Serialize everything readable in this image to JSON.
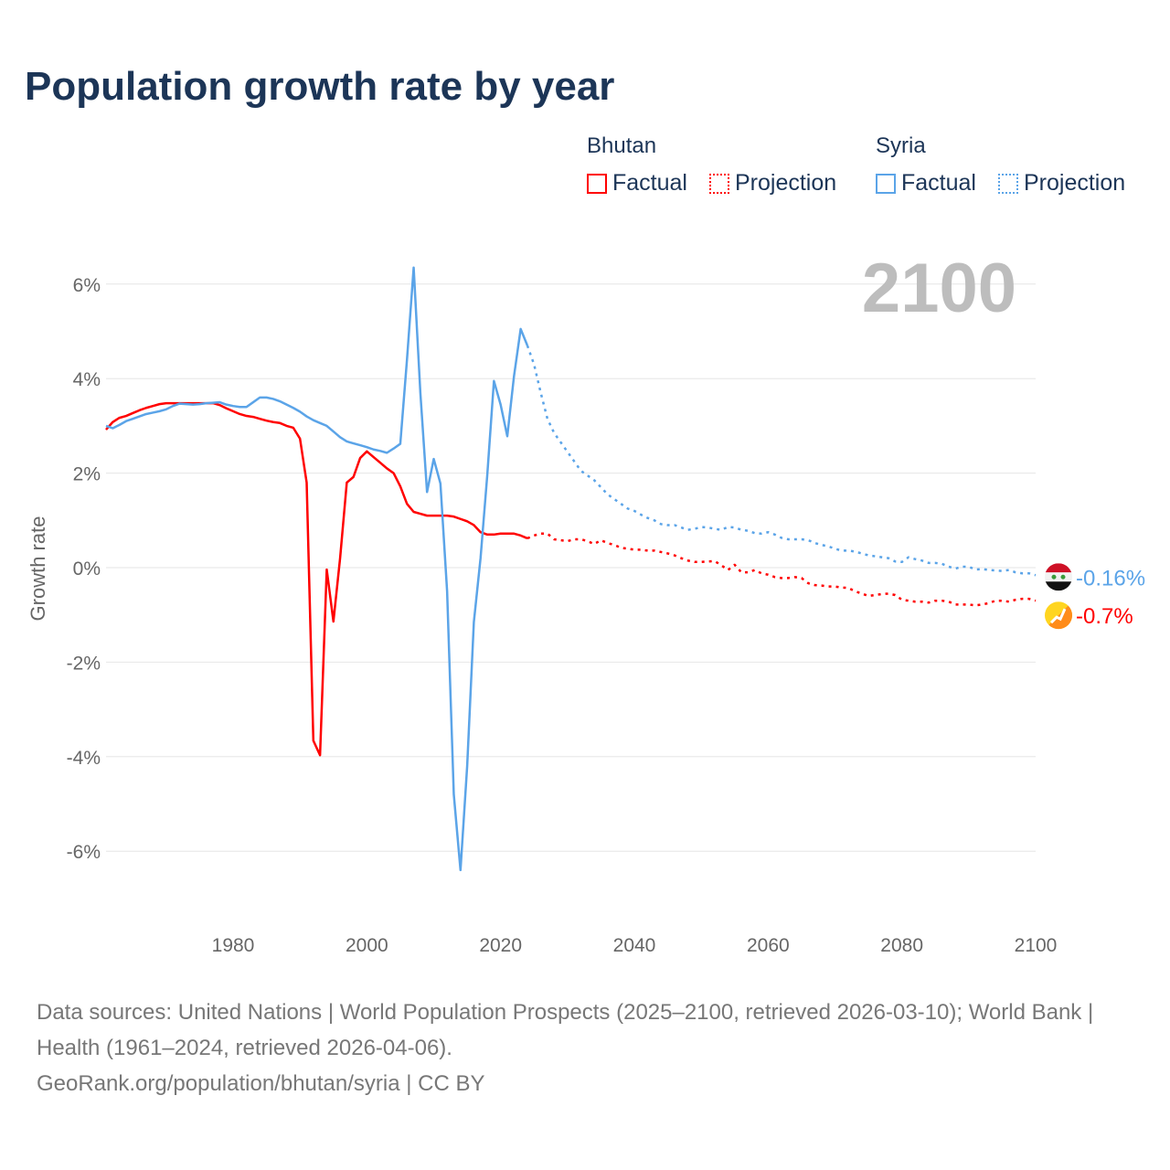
{
  "title": "Population growth rate by year",
  "current_year_label": "2100",
  "legend": {
    "groups": [
      {
        "country": "Bhutan",
        "factual": "Factual",
        "projection": "Projection",
        "color": "#ff0000"
      },
      {
        "country": "Syria",
        "factual": "Factual",
        "projection": "Projection",
        "color": "#5ba4e8"
      }
    ]
  },
  "footer": {
    "sources": "Data sources: United Nations | World Population Prospects (2025–2100, retrieved 2026-03-10); World Bank | Health (1961–2024, retrieved 2026-04-06).",
    "credit": "GeoRank.org/population/bhutan/syria | CC BY"
  },
  "chart_data": {
    "type": "line",
    "title": "Population growth rate by year",
    "xlabel": "",
    "ylabel": "Growth rate",
    "xlim": [
      1961,
      2100
    ],
    "ylim": [
      -7,
      6.9
    ],
    "xticks": [
      1980,
      2000,
      2020,
      2040,
      2060,
      2080,
      2100
    ],
    "yticks": [
      6,
      4,
      2,
      0,
      -2,
      -4,
      -6
    ],
    "ytick_labels": [
      "6%",
      "4%",
      "2%",
      "0%",
      "-2%",
      "-4%",
      "-6%"
    ],
    "grid": true,
    "series": [
      {
        "name": "Bhutan Factual",
        "country": "Bhutan",
        "kind": "factual",
        "color": "#ff0000",
        "start": 1961,
        "values": [
          2.92,
          3.08,
          3.17,
          3.21,
          3.27,
          3.33,
          3.38,
          3.42,
          3.46,
          3.48,
          3.48,
          3.48,
          3.48,
          3.48,
          3.48,
          3.48,
          3.48,
          3.44,
          3.37,
          3.31,
          3.25,
          3.21,
          3.19,
          3.15,
          3.11,
          3.08,
          3.06,
          3.0,
          2.96,
          2.73,
          1.8,
          -3.66,
          -3.97,
          -0.04,
          -1.14,
          0.2,
          1.8,
          1.92,
          2.32,
          2.46,
          2.34,
          2.22,
          2.1,
          2.0,
          1.72,
          1.35,
          1.18,
          1.14,
          1.1,
          1.1,
          1.1,
          1.1,
          1.08,
          1.03,
          0.98,
          0.9,
          0.75,
          0.7,
          0.7,
          0.72,
          0.72,
          0.72,
          0.68,
          0.62
        ]
      },
      {
        "name": "Bhutan Projection",
        "country": "Bhutan",
        "kind": "projection",
        "color": "#ff0000",
        "start": 2025,
        "values": [
          0.68,
          0.72,
          0.72,
          0.6,
          0.58,
          0.56,
          0.6,
          0.6,
          0.56,
          0.5,
          0.58,
          0.52,
          0.48,
          0.42,
          0.4,
          0.38,
          0.38,
          0.36,
          0.36,
          0.33,
          0.3,
          0.26,
          0.2,
          0.15,
          0.12,
          0.12,
          0.13,
          0.14,
          0.05,
          -0.05,
          0.06,
          -0.1,
          -0.1,
          -0.05,
          -0.12,
          -0.15,
          -0.2,
          -0.22,
          -0.22,
          -0.2,
          -0.22,
          -0.33,
          -0.37,
          -0.38,
          -0.4,
          -0.4,
          -0.42,
          -0.43,
          -0.5,
          -0.55,
          -0.6,
          -0.58,
          -0.56,
          -0.55,
          -0.58,
          -0.68,
          -0.7,
          -0.72,
          -0.72,
          -0.74,
          -0.7,
          -0.7,
          -0.72,
          -0.78,
          -0.78,
          -0.78,
          -0.8,
          -0.78,
          -0.75,
          -0.7,
          -0.7,
          -0.72,
          -0.68,
          -0.66,
          -0.66,
          -0.7
        ]
      },
      {
        "name": "Syria Factual",
        "country": "Syria",
        "kind": "factual",
        "color": "#5ba4e8",
        "start": 1961,
        "values": [
          3.0,
          2.95,
          3.02,
          3.1,
          3.15,
          3.2,
          3.25,
          3.28,
          3.31,
          3.35,
          3.42,
          3.47,
          3.46,
          3.45,
          3.46,
          3.48,
          3.49,
          3.5,
          3.45,
          3.42,
          3.4,
          3.4,
          3.5,
          3.6,
          3.6,
          3.57,
          3.52,
          3.45,
          3.38,
          3.3,
          3.2,
          3.12,
          3.06,
          3.0,
          2.88,
          2.76,
          2.67,
          2.63,
          2.59,
          2.55,
          2.5,
          2.47,
          2.43,
          2.52,
          2.62,
          4.4,
          6.35,
          3.7,
          1.6,
          2.3,
          1.78,
          -0.5,
          -4.8,
          -6.4,
          -4.2,
          -1.15,
          0.2,
          1.95,
          3.95,
          3.45,
          2.78,
          4.05,
          5.05,
          4.7
        ]
      },
      {
        "name": "Syria Projection",
        "country": "Syria",
        "kind": "projection",
        "color": "#5ba4e8",
        "start": 2025,
        "values": [
          4.3,
          3.7,
          3.15,
          2.85,
          2.65,
          2.45,
          2.25,
          2.05,
          1.95,
          1.85,
          1.7,
          1.55,
          1.45,
          1.35,
          1.25,
          1.2,
          1.12,
          1.05,
          1.0,
          0.92,
          0.9,
          0.9,
          0.85,
          0.8,
          0.82,
          0.86,
          0.85,
          0.82,
          0.8,
          0.86,
          0.85,
          0.8,
          0.78,
          0.73,
          0.72,
          0.75,
          0.7,
          0.63,
          0.6,
          0.6,
          0.6,
          0.58,
          0.52,
          0.48,
          0.45,
          0.4,
          0.36,
          0.36,
          0.34,
          0.3,
          0.26,
          0.24,
          0.22,
          0.2,
          0.13,
          0.12,
          0.22,
          0.18,
          0.15,
          0.1,
          0.1,
          0.08,
          0.02,
          -0.02,
          0.02,
          0.02,
          -0.04,
          -0.03,
          -0.05,
          -0.06,
          -0.07,
          -0.05,
          -0.1,
          -0.12,
          -0.12,
          -0.16
        ]
      }
    ],
    "end_labels": [
      {
        "country": "Syria",
        "text": "-0.16%",
        "color": "#5ba4e8",
        "value": -0.16
      },
      {
        "country": "Bhutan",
        "text": "-0.7%",
        "color": "#ff0000",
        "value": -0.7
      }
    ]
  }
}
